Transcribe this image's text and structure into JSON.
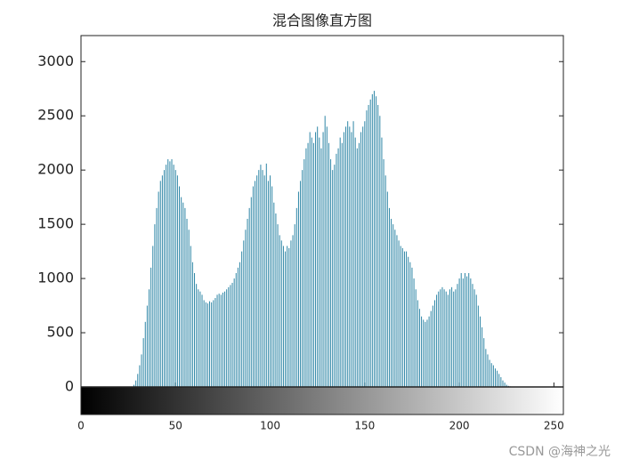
{
  "chart_data": {
    "type": "bar",
    "title": "混合图像直方图",
    "x": [
      0,
      1,
      2,
      3,
      4,
      5,
      6,
      7,
      8,
      9,
      10,
      11,
      12,
      13,
      14,
      15,
      16,
      17,
      18,
      19,
      20,
      21,
      22,
      23,
      24,
      25,
      26,
      27,
      28,
      29,
      30,
      31,
      32,
      33,
      34,
      35,
      36,
      37,
      38,
      39,
      40,
      41,
      42,
      43,
      44,
      45,
      46,
      47,
      48,
      49,
      50,
      51,
      52,
      53,
      54,
      55,
      56,
      57,
      58,
      59,
      60,
      61,
      62,
      63,
      64,
      65,
      66,
      67,
      68,
      69,
      70,
      71,
      72,
      73,
      74,
      75,
      76,
      77,
      78,
      79,
      80,
      81,
      82,
      83,
      84,
      85,
      86,
      87,
      88,
      89,
      90,
      91,
      92,
      93,
      94,
      95,
      96,
      97,
      98,
      99,
      100,
      101,
      102,
      103,
      104,
      105,
      106,
      107,
      108,
      109,
      110,
      111,
      112,
      113,
      114,
      115,
      116,
      117,
      118,
      119,
      120,
      121,
      122,
      123,
      124,
      125,
      126,
      127,
      128,
      129,
      130,
      131,
      132,
      133,
      134,
      135,
      136,
      137,
      138,
      139,
      140,
      141,
      142,
      143,
      144,
      145,
      146,
      147,
      148,
      149,
      150,
      151,
      152,
      153,
      154,
      155,
      156,
      157,
      158,
      159,
      160,
      161,
      162,
      163,
      164,
      165,
      166,
      167,
      168,
      169,
      170,
      171,
      172,
      173,
      174,
      175,
      176,
      177,
      178,
      179,
      180,
      181,
      182,
      183,
      184,
      185,
      186,
      187,
      188,
      189,
      190,
      191,
      192,
      193,
      194,
      195,
      196,
      197,
      198,
      199,
      200,
      201,
      202,
      203,
      204,
      205,
      206,
      207,
      208,
      209,
      210,
      211,
      212,
      213,
      214,
      215,
      216,
      217,
      218,
      219,
      220,
      221,
      222,
      223,
      224,
      225,
      226,
      227,
      228,
      229,
      230,
      231,
      232,
      233,
      234,
      235,
      236,
      237,
      238,
      239,
      240,
      241,
      242,
      243,
      244,
      245,
      246,
      247,
      248,
      249,
      250,
      251,
      252,
      253,
      254,
      255
    ],
    "values": [
      0,
      0,
      0,
      0,
      0,
      0,
      0,
      0,
      0,
      0,
      0,
      0,
      0,
      0,
      0,
      0,
      0,
      0,
      0,
      0,
      0,
      0,
      0,
      0,
      0,
      0,
      0,
      0,
      20,
      60,
      120,
      200,
      300,
      450,
      600,
      750,
      900,
      1100,
      1300,
      1500,
      1650,
      1800,
      1900,
      1950,
      2000,
      2050,
      2100,
      2080,
      2100,
      2050,
      2000,
      1950,
      1850,
      1750,
      1700,
      1650,
      1550,
      1450,
      1300,
      1150,
      1050,
      950,
      900,
      880,
      850,
      800,
      780,
      770,
      790,
      780,
      800,
      820,
      850,
      860,
      850,
      870,
      880,
      900,
      920,
      940,
      960,
      1000,
      1050,
      1100,
      1150,
      1250,
      1350,
      1450,
      1550,
      1650,
      1750,
      1850,
      1900,
      1950,
      2000,
      2050,
      2000,
      1950,
      2060,
      1900,
      1950,
      1850,
      1700,
      1600,
      1500,
      1400,
      1350,
      1300,
      1250,
      1300,
      1280,
      1350,
      1400,
      1500,
      1650,
      1800,
      1900,
      2000,
      2100,
      2200,
      2250,
      2350,
      2300,
      2250,
      2350,
      2400,
      2300,
      2200,
      2350,
      2500,
      2400,
      2250,
      2100,
      2000,
      2050,
      2150,
      2200,
      2300,
      2250,
      2350,
      2400,
      2450,
      2400,
      2350,
      2450,
      2300,
      2200,
      2250,
      2350,
      2400,
      2450,
      2550,
      2600,
      2650,
      2700,
      2730,
      2680,
      2600,
      2500,
      2300,
      2100,
      1950,
      1800,
      1650,
      1550,
      1500,
      1450,
      1400,
      1350,
      1300,
      1280,
      1250,
      1250,
      1200,
      1150,
      1100,
      1000,
      900,
      800,
      720,
      650,
      620,
      600,
      620,
      650,
      700,
      750,
      800,
      850,
      880,
      900,
      920,
      900,
      880,
      850,
      900,
      920,
      880,
      900,
      950,
      1000,
      1050,
      1000,
      1050,
      1020,
      1050,
      1000,
      950,
      900,
      850,
      750,
      650,
      550,
      450,
      350,
      300,
      250,
      220,
      200,
      170,
      150,
      120,
      90,
      60,
      40,
      20,
      10,
      5,
      0,
      0,
      0,
      0,
      0,
      0,
      0,
      0,
      0,
      0,
      0,
      0,
      0,
      0,
      0,
      0,
      0,
      0,
      0,
      0,
      0,
      0,
      0,
      0,
      0,
      0,
      0,
      0
    ],
    "color": "#2e86a6",
    "xlim": [
      0,
      255
    ],
    "xticks": [
      0,
      50,
      100,
      150,
      200,
      250
    ],
    "ylim": [
      0,
      3240
    ],
    "yticks": [
      0,
      500,
      1000,
      1500,
      2000,
      2500,
      3000
    ],
    "watermark": "CSDN @海神之光"
  }
}
